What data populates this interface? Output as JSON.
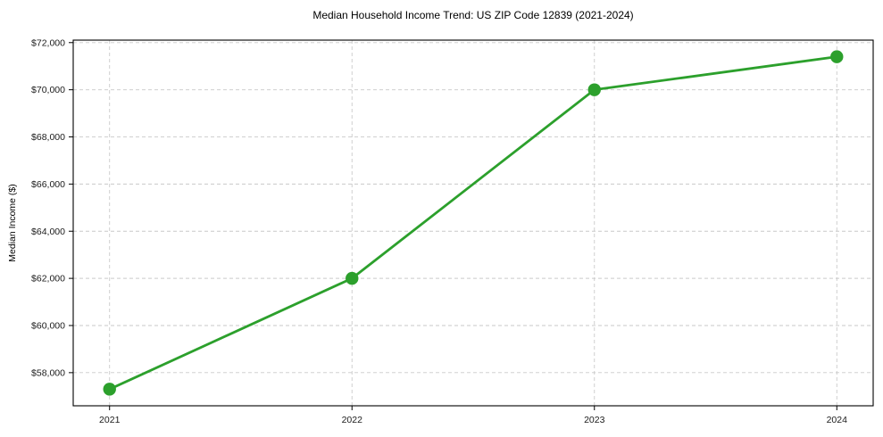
{
  "chart_data": {
    "type": "line",
    "title": "Median Household Income Trend: US ZIP Code 12839 (2021-2024)",
    "xlabel": "",
    "ylabel": "Median Income ($)",
    "series_name": "Median Household Income",
    "x": [
      2021,
      2022,
      2023,
      2024
    ],
    "values": [
      57300,
      62000,
      70000,
      71400
    ],
    "xticks": [
      2021,
      2022,
      2023,
      2024
    ],
    "xtick_labels": [
      "2021",
      "2022",
      "2023",
      "2024"
    ],
    "yticks": [
      58000,
      60000,
      62000,
      64000,
      66000,
      68000,
      70000,
      72000
    ],
    "ytick_labels": [
      "$58,000",
      "$60,000",
      "$62,000",
      "$64,000",
      "$66,000",
      "$68,000",
      "$70,000",
      "$72,000"
    ],
    "xlim": [
      2020.85,
      2024.15
    ],
    "ylim": [
      56595,
      72105
    ],
    "grid": true,
    "grid_style": "dashed",
    "legend": false,
    "line_color": "#2ca02c",
    "marker_color": "#2ca02c",
    "grid_color": "#c9c9c9",
    "background": "#ffffff"
  }
}
